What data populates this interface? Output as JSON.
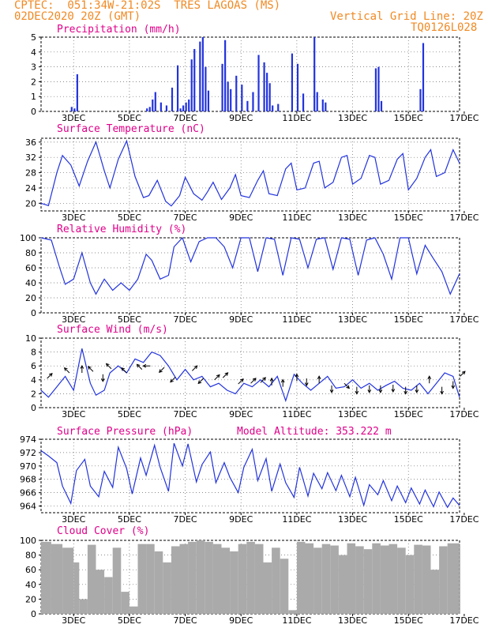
{
  "header": {
    "line1": "CPTEC:  051:34W-21:02S  TRES LAGOAS (MS)",
    "line2_left": "02DEC2020 20Z (GMT)",
    "line2_right": "Vertical Grid Line: 20Z",
    "code": "TQ0126L028"
  },
  "colors": {
    "series": "#2233dd",
    "arrows": "#000000",
    "bars": "#2233dd",
    "cloud": "#aaaaaa",
    "title": "#e0008a",
    "header": "#f08a24"
  },
  "x_axis": {
    "labels": [
      "3DEC",
      "5DEC",
      "7DEC",
      "9DEC",
      "11DEC",
      "13DEC",
      "15DEC",
      "17DEC"
    ],
    "label_days": [
      3,
      5,
      7,
      9,
      11,
      13,
      15,
      17
    ],
    "start": "02DEC2020 20Z",
    "end": "17DEC2020 20Z"
  },
  "chart_data": [
    {
      "type": "bar",
      "title": "Precipitation (mm/h)",
      "ylim": [
        0,
        5
      ],
      "yticks": [
        0,
        1,
        2,
        3,
        4,
        5
      ],
      "x": [
        2.9,
        3.0,
        3.1,
        5.6,
        5.7,
        5.8,
        5.9,
        6.1,
        6.3,
        6.5,
        6.7,
        6.8,
        6.9,
        7.0,
        7.1,
        7.2,
        7.3,
        7.5,
        7.6,
        7.7,
        7.8,
        8.3,
        8.4,
        8.5,
        8.6,
        8.8,
        9.0,
        9.2,
        9.4,
        9.6,
        9.8,
        9.9,
        10.0,
        10.1,
        10.3,
        10.8,
        11.0,
        11.2,
        11.6,
        11.7,
        11.9,
        12.0,
        13.8,
        13.9,
        14.0,
        15.4,
        15.5
      ],
      "values": [
        0.3,
        0.2,
        2.5,
        0.2,
        0.3,
        0.8,
        1.3,
        0.6,
        0.4,
        1.6,
        3.1,
        0.2,
        0.4,
        0.6,
        0.8,
        3.5,
        4.2,
        4.7,
        5.0,
        3.0,
        1.4,
        3.2,
        4.8,
        2.0,
        1.5,
        2.4,
        1.8,
        0.7,
        1.3,
        3.8,
        3.3,
        2.6,
        1.9,
        0.4,
        0.5,
        3.9,
        3.2,
        1.2,
        5.0,
        1.3,
        0.8,
        0.6,
        2.9,
        3.0,
        0.7,
        1.5,
        4.6
      ]
    },
    {
      "type": "line",
      "title": "Surface Temperature (nC)",
      "ylim": [
        18,
        37
      ],
      "yticks": [
        20,
        24,
        28,
        32,
        36
      ],
      "x": [
        1.83,
        2.1,
        2.4,
        2.6,
        2.9,
        3.2,
        3.5,
        3.8,
        4.1,
        4.3,
        4.6,
        4.9,
        5.2,
        5.5,
        5.7,
        6.0,
        6.3,
        6.5,
        6.8,
        7.0,
        7.3,
        7.6,
        7.8,
        8.0,
        8.3,
        8.6,
        8.8,
        9.0,
        9.3,
        9.6,
        9.8,
        10.0,
        10.3,
        10.6,
        10.8,
        11.0,
        11.3,
        11.6,
        11.8,
        12.0,
        12.3,
        12.6,
        12.8,
        13.0,
        13.3,
        13.6,
        13.8,
        14.0,
        14.3,
        14.6,
        14.8,
        15.0,
        15.3,
        15.6,
        15.8,
        16.0,
        16.3,
        16.6,
        16.83
      ],
      "values": [
        20.0,
        19.4,
        28.0,
        32.5,
        30.0,
        24.5,
        31.0,
        36.0,
        28.5,
        24.0,
        31.5,
        36.3,
        27.0,
        21.5,
        22.0,
        26.0,
        20.5,
        19.3,
        22.0,
        26.8,
        22.5,
        20.8,
        23.0,
        25.5,
        21.0,
        24.0,
        27.5,
        22.0,
        21.5,
        26.0,
        28.5,
        22.5,
        22.0,
        29.0,
        30.5,
        23.5,
        24.0,
        30.5,
        31.0,
        24.0,
        25.5,
        32.0,
        32.5,
        25.0,
        26.5,
        32.5,
        32.0,
        25.0,
        26.0,
        31.5,
        33.0,
        23.5,
        26.5,
        32.0,
        34.0,
        27.0,
        28.0,
        34.0,
        30.5
      ]
    },
    {
      "type": "line",
      "title": "Relative Humidity (%)",
      "ylim": [
        0,
        100
      ],
      "yticks": [
        0,
        20,
        40,
        60,
        80,
        100
      ],
      "x": [
        1.83,
        2.2,
        2.5,
        2.7,
        3.0,
        3.3,
        3.6,
        3.8,
        4.1,
        4.4,
        4.7,
        5.0,
        5.3,
        5.6,
        5.8,
        6.1,
        6.4,
        6.6,
        6.9,
        7.2,
        7.5,
        7.8,
        8.1,
        8.4,
        8.7,
        9.0,
        9.3,
        9.6,
        9.9,
        10.2,
        10.5,
        10.8,
        11.1,
        11.4,
        11.7,
        12.0,
        12.3,
        12.6,
        12.9,
        13.2,
        13.5,
        13.8,
        14.1,
        14.4,
        14.7,
        15.0,
        15.3,
        15.6,
        15.9,
        16.2,
        16.5,
        16.83
      ],
      "values": [
        100,
        97,
        60,
        38,
        45,
        80,
        40,
        25,
        45,
        30,
        40,
        30,
        45,
        78,
        70,
        45,
        50,
        88,
        100,
        68,
        95,
        100,
        100,
        88,
        60,
        100,
        100,
        55,
        100,
        98,
        50,
        100,
        98,
        60,
        98,
        100,
        58,
        100,
        98,
        50,
        97,
        100,
        78,
        45,
        100,
        100,
        52,
        90,
        72,
        55,
        25,
        52
      ]
    },
    {
      "type": "line",
      "title": "Surface Wind (m/s)",
      "ylim": [
        0,
        10
      ],
      "yticks": [
        0,
        2,
        4,
        6,
        8,
        10
      ],
      "x": [
        1.83,
        2.1,
        2.4,
        2.7,
        3.0,
        3.3,
        3.6,
        3.8,
        4.1,
        4.3,
        4.6,
        4.9,
        5.2,
        5.5,
        5.8,
        6.1,
        6.4,
        6.7,
        7.0,
        7.3,
        7.6,
        7.9,
        8.2,
        8.5,
        8.8,
        9.1,
        9.4,
        9.7,
        10.0,
        10.3,
        10.6,
        10.9,
        11.2,
        11.5,
        11.8,
        12.1,
        12.4,
        12.7,
        13.0,
        13.3,
        13.6,
        13.9,
        14.2,
        14.5,
        14.8,
        15.1,
        15.4,
        15.7,
        16.0,
        16.3,
        16.6,
        16.83
      ],
      "values": [
        2.5,
        1.5,
        3.0,
        4.5,
        2.5,
        8.5,
        3.5,
        1.8,
        2.5,
        5.0,
        6.0,
        5.0,
        7.0,
        6.5,
        8.0,
        7.5,
        6.0,
        4.0,
        5.5,
        4.0,
        4.5,
        3.0,
        3.5,
        2.5,
        2.0,
        3.5,
        3.0,
        4.0,
        3.0,
        4.5,
        1.0,
        4.8,
        3.5,
        2.5,
        3.5,
        4.5,
        2.8,
        3.0,
        4.0,
        2.8,
        3.5,
        2.5,
        3.2,
        3.8,
        2.8,
        2.5,
        3.5,
        2.0,
        3.5,
        5.0,
        4.5,
        1.5
      ],
      "arrows": [
        {
          "day": 2.05,
          "speed": 4.2,
          "dir": "NE"
        },
        {
          "day": 2.85,
          "speed": 5.0,
          "dir": "NW"
        },
        {
          "day": 3.3,
          "speed": 5.0,
          "dir": "N"
        },
        {
          "day": 3.7,
          "speed": 5.2,
          "dir": "NW"
        },
        {
          "day": 4.05,
          "speed": 4.8,
          "dir": "S"
        },
        {
          "day": 4.35,
          "speed": 5.6,
          "dir": "NW"
        },
        {
          "day": 4.9,
          "speed": 5.0,
          "dir": "NW"
        },
        {
          "day": 5.45,
          "speed": 5.5,
          "dir": "NW"
        },
        {
          "day": 5.75,
          "speed": 6.0,
          "dir": "W"
        },
        {
          "day": 6.25,
          "speed": 5.8,
          "dir": "SW"
        },
        {
          "day": 6.65,
          "speed": 4.4,
          "dir": "SW"
        },
        {
          "day": 7.25,
          "speed": 5.3,
          "dir": "NE"
        },
        {
          "day": 7.65,
          "speed": 4.2,
          "dir": "SW"
        },
        {
          "day": 8.05,
          "speed": 4.0,
          "dir": "NE"
        },
        {
          "day": 8.35,
          "speed": 4.3,
          "dir": "NE"
        },
        {
          "day": 8.9,
          "speed": 3.4,
          "dir": "NE"
        },
        {
          "day": 9.35,
          "speed": 3.5,
          "dir": "NE"
        },
        {
          "day": 9.7,
          "speed": 3.6,
          "dir": "NE"
        },
        {
          "day": 10.1,
          "speed": 3.2,
          "dir": "N"
        },
        {
          "day": 10.5,
          "speed": 3.0,
          "dir": "N"
        },
        {
          "day": 11.0,
          "speed": 3.8,
          "dir": "N"
        },
        {
          "day": 11.35,
          "speed": 4.2,
          "dir": "S"
        },
        {
          "day": 11.8,
          "speed": 3.5,
          "dir": "N"
        },
        {
          "day": 12.25,
          "speed": 3.2,
          "dir": "S"
        },
        {
          "day": 12.7,
          "speed": 3.5,
          "dir": "SE"
        },
        {
          "day": 13.15,
          "speed": 3.0,
          "dir": "S"
        },
        {
          "day": 13.6,
          "speed": 3.2,
          "dir": "S"
        },
        {
          "day": 14.0,
          "speed": 3.2,
          "dir": "S"
        },
        {
          "day": 14.45,
          "speed": 3.3,
          "dir": "S"
        },
        {
          "day": 14.9,
          "speed": 3.0,
          "dir": "S"
        },
        {
          "day": 15.3,
          "speed": 3.2,
          "dir": "S"
        },
        {
          "day": 15.75,
          "speed": 3.5,
          "dir": "N"
        },
        {
          "day": 16.2,
          "speed": 3.0,
          "dir": "S"
        },
        {
          "day": 16.6,
          "speed": 3.8,
          "dir": "S"
        },
        {
          "day": 16.85,
          "speed": 4.5,
          "dir": "NE"
        }
      ]
    },
    {
      "type": "line",
      "title": "Surface Pressure (hPa)",
      "subtitle": "Model Altitude: 353.222 m",
      "ylim": [
        963,
        974
      ],
      "yticks": [
        964,
        966,
        968,
        970,
        972,
        974
      ],
      "x": [
        1.83,
        2.1,
        2.4,
        2.6,
        2.9,
        3.1,
        3.4,
        3.6,
        3.9,
        4.1,
        4.4,
        4.6,
        4.9,
        5.1,
        5.4,
        5.6,
        5.9,
        6.1,
        6.4,
        6.6,
        6.9,
        7.1,
        7.4,
        7.6,
        7.9,
        8.1,
        8.4,
        8.6,
        8.9,
        9.1,
        9.4,
        9.6,
        9.9,
        10.1,
        10.4,
        10.6,
        10.9,
        11.1,
        11.4,
        11.6,
        11.9,
        12.1,
        12.4,
        12.6,
        12.9,
        13.1,
        13.4,
        13.6,
        13.9,
        14.1,
        14.4,
        14.6,
        14.9,
        15.1,
        15.4,
        15.6,
        15.9,
        16.1,
        16.4,
        16.6,
        16.83
      ],
      "values": [
        972.3,
        971.5,
        970.5,
        967.0,
        964.4,
        969.3,
        971.0,
        967.0,
        965.4,
        969.2,
        966.8,
        972.8,
        969.6,
        965.8,
        971.2,
        968.6,
        973.1,
        969.8,
        966.2,
        973.4,
        970.0,
        973.3,
        967.6,
        970.2,
        972.1,
        967.5,
        970.5,
        968.3,
        966.0,
        969.8,
        972.5,
        967.8,
        971.1,
        966.2,
        970.3,
        967.5,
        965.3,
        969.8,
        965.5,
        968.9,
        966.6,
        969.0,
        966.3,
        968.6,
        965.4,
        968.3,
        964.1,
        967.2,
        965.7,
        967.8,
        964.8,
        967.0,
        964.5,
        966.7,
        964.3,
        966.4,
        963.9,
        966.1,
        963.8,
        965.2,
        964.1
      ]
    },
    {
      "type": "bar",
      "title": "Cloud Cover (%)",
      "ylim": [
        0,
        100
      ],
      "yticks": [
        0,
        20,
        40,
        60,
        80,
        100
      ],
      "x": [
        1.83,
        2.2,
        2.6,
        3.0,
        3.2,
        3.5,
        3.8,
        4.1,
        4.4,
        4.7,
        5.0,
        5.3,
        5.6,
        5.9,
        6.2,
        6.5,
        6.8,
        7.1,
        7.4,
        7.7,
        8.0,
        8.3,
        8.6,
        8.9,
        9.2,
        9.5,
        9.8,
        10.1,
        10.4,
        10.7,
        11.0,
        11.3,
        11.6,
        11.9,
        12.2,
        12.5,
        12.8,
        13.1,
        13.4,
        13.7,
        14.0,
        14.3,
        14.6,
        14.9,
        15.2,
        15.5,
        15.8,
        16.1,
        16.4,
        16.83
      ],
      "values": [
        98,
        95,
        90,
        70,
        20,
        94,
        60,
        50,
        90,
        30,
        10,
        95,
        95,
        85,
        70,
        92,
        95,
        98,
        100,
        98,
        95,
        90,
        85,
        95,
        98,
        95,
        70,
        90,
        75,
        5,
        98,
        96,
        90,
        95,
        93,
        80,
        96,
        92,
        88,
        96,
        93,
        95,
        90,
        80,
        94,
        93,
        60,
        92,
        96,
        95
      ]
    }
  ]
}
